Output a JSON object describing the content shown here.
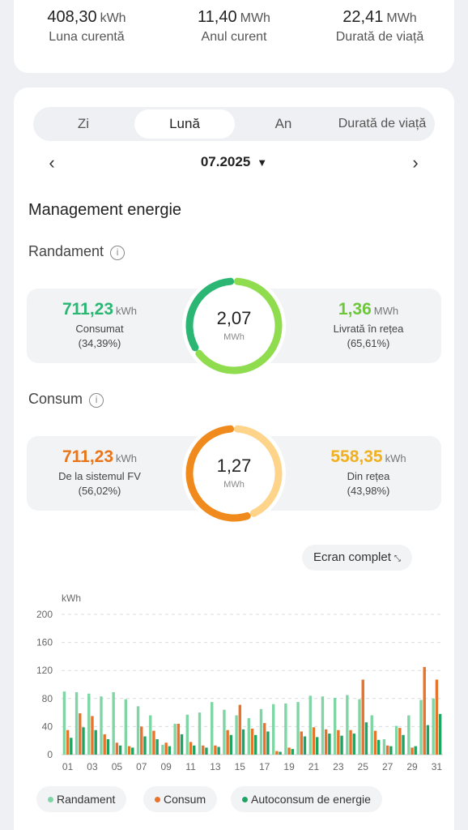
{
  "summary": [
    {
      "value": "408,30",
      "unit": "kWh",
      "label": "Luna curentă"
    },
    {
      "value": "11,40",
      "unit": "MWh",
      "label": "Anul curent"
    },
    {
      "value": "22,41",
      "unit": "MWh",
      "label": "Durată de viață"
    }
  ],
  "tabs": [
    {
      "label": "Zi",
      "active": false
    },
    {
      "label": "Lună",
      "active": true
    },
    {
      "label": "An",
      "active": false
    },
    {
      "label": "Durată de viață",
      "active": false
    }
  ],
  "nav": {
    "prev": "‹",
    "next": "›",
    "date": "07.2025",
    "dropdown": "▼"
  },
  "energy": {
    "title": "Management energie",
    "yield": {
      "title": "Randament",
      "info": "i",
      "left": {
        "value": "711,23",
        "unit": "kWh",
        "label": "Consumat",
        "percent": "(34,39%)"
      },
      "center": {
        "value": "2,07",
        "unit": "MWh"
      },
      "right": {
        "value": "1,36",
        "unit": "MWh",
        "label": "Livrată în rețea",
        "percent": "(65,61%)"
      },
      "ring_fraction_left": 0.3439
    },
    "consumption": {
      "title": "Consum",
      "info": "i",
      "left": {
        "value": "711,23",
        "unit": "kWh",
        "label": "De la sistemul FV",
        "percent": "(56,02%)"
      },
      "center": {
        "value": "1,27",
        "unit": "MWh"
      },
      "right": {
        "value": "558,35",
        "unit": "kWh",
        "label": "Din rețea",
        "percent": "(43,98%)"
      },
      "ring_fraction_left": 0.5602
    }
  },
  "fullscreen": {
    "label": "Ecran complet",
    "icon": "⤡"
  },
  "colors": {
    "green_dark": "#2bb673",
    "green_light": "#8fdc4f",
    "orange": "#f08a1c",
    "orange_light": "#fdd48a",
    "bar_yield": "#7fd6a4",
    "bar_consum": "#e8732a",
    "bar_auto": "#1fa463"
  },
  "chart_data": {
    "type": "bar",
    "ylabel": "kWh",
    "ylim": [
      0,
      200
    ],
    "yticks": [
      "0",
      "40",
      "80",
      "120",
      "160",
      "200"
    ],
    "x": [
      "01",
      "02",
      "03",
      "04",
      "05",
      "06",
      "07",
      "08",
      "09",
      "10",
      "11",
      "12",
      "13",
      "14",
      "15",
      "16",
      "17",
      "18",
      "19",
      "20",
      "21",
      "22",
      "23",
      "24",
      "25",
      "26",
      "27",
      "28",
      "29",
      "30",
      "31"
    ],
    "xtick_labels": [
      "01",
      "03",
      "05",
      "07",
      "09",
      "11",
      "13",
      "15",
      "17",
      "19",
      "21",
      "23",
      "25",
      "27",
      "29",
      "31"
    ],
    "series": [
      {
        "name": "Randament",
        "values": [
          90,
          89,
          87,
          83,
          89,
          79,
          69,
          56,
          14,
          44,
          57,
          60,
          75,
          64,
          56,
          52,
          65,
          72,
          73,
          75,
          84,
          83,
          81,
          85,
          79,
          56,
          22,
          41,
          56,
          78,
          80
        ]
      },
      {
        "name": "Consum",
        "values": [
          35,
          59,
          55,
          29,
          17,
          12,
          40,
          34,
          17,
          44,
          18,
          13,
          13,
          35,
          71,
          37,
          45,
          5,
          10,
          33,
          39,
          36,
          35,
          35,
          107,
          34,
          13,
          38,
          10,
          125,
          107
        ]
      },
      {
        "name": "Autoconsum de energie",
        "values": [
          24,
          39,
          35,
          22,
          13,
          10,
          26,
          22,
          12,
          29,
          13,
          10,
          11,
          28,
          36,
          28,
          33,
          4,
          8,
          26,
          25,
          30,
          27,
          30,
          46,
          21,
          12,
          28,
          12,
          42,
          58
        ]
      }
    ]
  }
}
